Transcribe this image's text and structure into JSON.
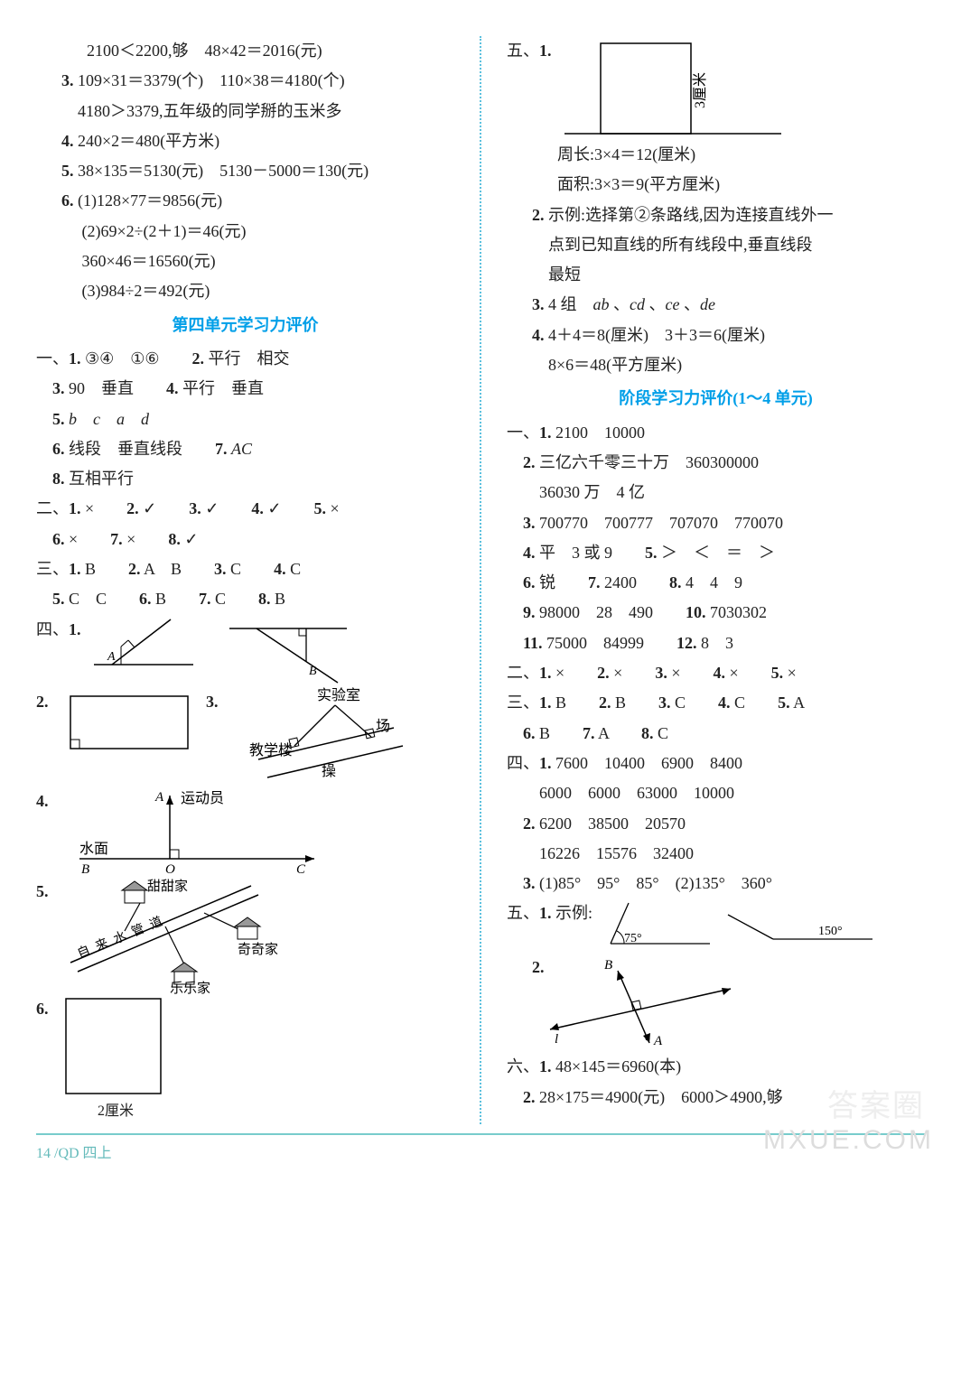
{
  "footer": "14 /QD 四上",
  "watermark_main": "MXUE.COM",
  "watermark_cn": "答案圈",
  "left": {
    "pre": [
      "2100＜2200,够　48×42＝2016(元)",
      "<b>3.</b> 109×31＝3379(个)　110×38＝4180(个)",
      "　4180＞3379,五年级的同学掰的玉米多",
      "<b>4.</b> 240×2＝480(平方米)",
      "<b>5.</b> 38×135＝5130(元)　5130－5000＝130(元)",
      "<b>6.</b> (1)128×77＝9856(元)",
      "　 (2)69×2÷(2＋1)＝46(元)",
      "　 360×46＝16560(元)",
      "　 (3)984÷2＝492(元)"
    ],
    "title1": "第四单元学习力评价",
    "sec1": [
      "一、<b>1.</b> ③④　①⑥　　<b>2.</b> 平行　相交",
      "　<b>3.</b> 90　垂直　　<b>4.</b> 平行　垂直",
      "　<b>5.</b> <i>b</i>　<i>c</i>　<i>a</i>　<i>d</i>",
      "　<b>6.</b> 线段　垂直线段　　<b>7.</b> <i>AC</i>",
      "　<b>8.</b> 互相平行"
    ],
    "sec2": "二、<b>1.</b> ×　　<b>2.</b> ✓　　<b>3.</b> ✓　　<b>4.</b> ✓　　<b>5.</b> ×<br>　<b>6.</b> ×　　<b>7.</b> ×　　<b>8.</b> ✓",
    "sec3": "三、<b>1.</b> B　　<b>2.</b> A　B　　<b>3.</b> C　　<b>4.</b> C<br>　<b>5.</b> C　C　　<b>6.</b> B　　<b>7.</b> C　　<b>8.</b> B",
    "sec4_label": "四、<b>1.</b>",
    "d4_2": "<b>2.</b>",
    "d4_3": "<b>3.</b>",
    "d4_3_labels": {
      "lab": "实验室",
      "teach": "教学楼",
      "field": "操",
      "field2": "场"
    },
    "d4_4": "<b>4.</b>",
    "d4_4_labels": {
      "a": "A",
      "athlete": "运动员",
      "water": "水面",
      "b": "B",
      "o": "O",
      "c": "C"
    },
    "d4_5": "<b>5.</b>",
    "d4_5_labels": {
      "tian": "甜甜家",
      "pipe": "自",
      "pipe2": "来",
      "pipe3": "水",
      "pipe4": "管",
      "dao": "道",
      "qi": "奇奇家",
      "le": "乐乐家"
    },
    "d4_6": "<b>6.</b>",
    "d4_6_label": "2厘米"
  },
  "right": {
    "sec5_label": "五、<b>1.</b>",
    "d5_1_label": "3厘米",
    "d5_1_sub": [
      "周长:3×4＝12(厘米)",
      "面积:3×3＝9(平方厘米)"
    ],
    "d5_rest": [
      "<b>2.</b> 示例:选择第②条路线,因为连接直线外一",
      "　点到已知直线的所有线段中,垂直线段",
      "　最短",
      "<b>3.</b> 4 组　<i>ab</i> 、<i>cd</i> 、<i>ce</i> 、<i>de</i>",
      "<b>4.</b> 4＋4＝8(厘米)　3＋3＝6(厘米)",
      "　8×6＝48(平方厘米)"
    ],
    "title2": "阶段学习力评价(1～4 单元)",
    "s1": [
      "一、<b>1.</b> 2100　10000",
      "　<b>2.</b> 三亿六千零三十万　360300000",
      "　　36030 万　4 亿",
      "　<b>3.</b> 700770　700777　707070　770070",
      "　<b>4.</b> 平　3 或 9　　<b>5.</b> ＞　＜　＝　＞",
      "　<b>6.</b> 锐　　<b>7.</b> 2400　　<b>8.</b> 4　4　9",
      "　<b>9.</b> 98000　28　490　　<b>10.</b> 7030302",
      "　<b>11.</b> 75000　84999　　<b>12.</b> 8　3"
    ],
    "s2": "二、<b>1.</b> ×　　<b>2.</b> ×　　<b>3.</b> ×　　<b>4.</b> ×　　<b>5.</b> ×",
    "s3": "三、<b>1.</b> B　　<b>2.</b> B　　<b>3.</b> C　　<b>4.</b> C　　<b>5.</b> A<br>　<b>6.</b> B　　<b>7.</b> A　　<b>8.</b> C",
    "s4": [
      "四、<b>1.</b> 7600　10400　6900　8400",
      "　　6000　6000　63000　10000",
      "　<b>2.</b> 6200　38500　20570",
      "　　16226　15576　32400",
      "　<b>3.</b> (1)85°　95°　85°　(2)135°　360°"
    ],
    "s5_label": "五、<b>1.</b> 示例:",
    "s5_1_labels": {
      "a75": "75°",
      "a150": "150°"
    },
    "s5_2": "<b>2.</b>",
    "s5_2_labels": {
      "b": "B",
      "l": "l",
      "a": "A"
    },
    "s6": [
      "六、<b>1.</b> 48×145＝6960(本)",
      "　<b>2.</b> 28×175＝4900(元)　6000＞4900,够"
    ]
  },
  "colors": {
    "title": "#009fe8",
    "divider": "#5bc0de",
    "stroke": "#000000"
  }
}
